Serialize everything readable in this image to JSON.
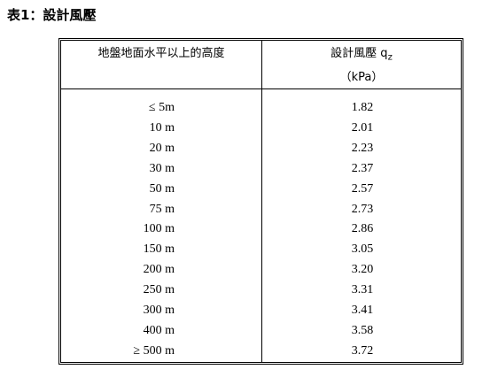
{
  "title": "表1：設計風壓",
  "table": {
    "header": [
      "地盤地面水平以上的高度",
      "設計風壓 q",
      "z",
      "（kPa）"
    ],
    "rows": [
      [
        "≤ 5m",
        "1.82"
      ],
      [
        "10 m",
        "2.01"
      ],
      [
        "20 m",
        "2.23"
      ],
      [
        "30 m",
        "2.37"
      ],
      [
        "50 m",
        "2.57"
      ],
      [
        "75 m",
        "2.73"
      ],
      [
        "100 m",
        "2.86"
      ],
      [
        "150 m",
        "3.05"
      ],
      [
        "200 m",
        "3.20"
      ],
      [
        "250 m",
        "3.31"
      ],
      [
        "300 m",
        "3.41"
      ],
      [
        "400 m",
        "3.58"
      ],
      [
        "≥ 500 m",
        "3.72"
      ]
    ]
  }
}
